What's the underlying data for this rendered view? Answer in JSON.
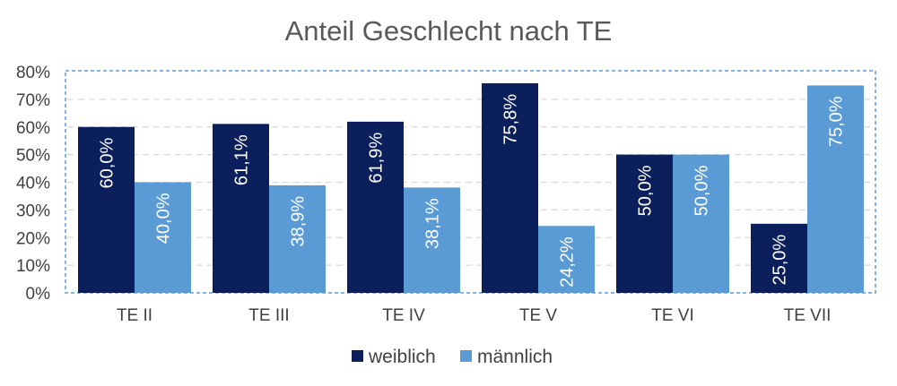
{
  "chart_data": {
    "type": "bar",
    "title": "Anteil Geschlecht nach TE",
    "categories": [
      "TE II",
      "TE III",
      "TE IV",
      "TE V",
      "TE VI",
      "TE VII"
    ],
    "series": [
      {
        "name": "weiblich",
        "color": "#0b1f5c",
        "values": [
          60.0,
          61.1,
          61.9,
          75.8,
          50.0,
          25.0
        ],
        "labels": [
          "60,0%",
          "61,1%",
          "61,9%",
          "75,8%",
          "50,0%",
          "25,0%"
        ]
      },
      {
        "name": "männlich",
        "color": "#5b9bd5",
        "values": [
          40.0,
          38.9,
          38.1,
          24.2,
          50.0,
          75.0
        ],
        "labels": [
          "40,0%",
          "38,9%",
          "38,1%",
          "24,2%",
          "50,0%",
          "75,0%"
        ]
      }
    ],
    "yticks": [
      "0%",
      "10%",
      "20%",
      "30%",
      "40%",
      "50%",
      "60%",
      "70%",
      "80%"
    ],
    "ylim": [
      0,
      80
    ],
    "grid": true,
    "legend": "bottom"
  }
}
